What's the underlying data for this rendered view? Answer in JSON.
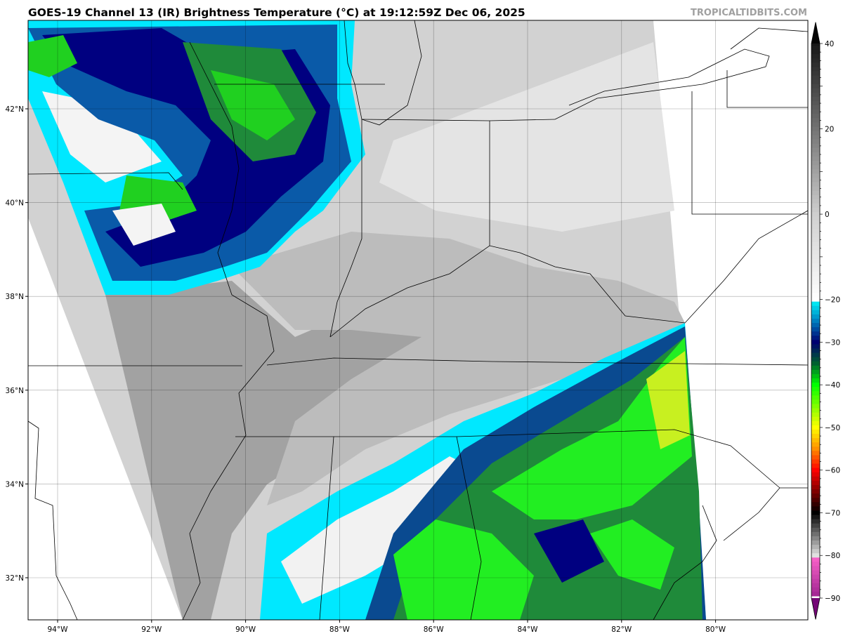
{
  "title": "GOES-19 Channel 13 (IR) Brightness Temperature (°C) at 19:12:59Z Dec 06, 2025",
  "watermark": "TROPICALTIDBITS.COM",
  "map": {
    "type": "satellite-ir",
    "lon_range": [
      -94.6,
      -78.0
    ],
    "lat_range": [
      31.1,
      43.8
    ],
    "grid": true,
    "lon_ticks": [
      "94°W",
      "92°W",
      "90°W",
      "88°W",
      "86°W",
      "84°W",
      "82°W",
      "80°W"
    ],
    "lat_ticks": [
      "42°N",
      "40°N",
      "38°N",
      "36°N",
      "34°N",
      "32°N"
    ]
  },
  "colorbar": {
    "orientation": "vertical",
    "placement": "right",
    "range": [
      -95,
      45
    ],
    "ticks": [
      "40",
      "20",
      "0",
      "−20",
      "−30",
      "−40",
      "−50",
      "−60",
      "−70",
      "−80",
      "−90"
    ],
    "stops": [
      {
        "t": 45,
        "c": "#000000"
      },
      {
        "t": 0,
        "c": "#cfcfcf"
      },
      {
        "t": -20,
        "c": "#ffffff"
      },
      {
        "t": -20,
        "c": "#00ffff"
      },
      {
        "t": -25,
        "c": "#0080c0"
      },
      {
        "t": -30,
        "c": "#000070"
      },
      {
        "t": -35,
        "c": "#006030"
      },
      {
        "t": -40,
        "c": "#00ff00"
      },
      {
        "t": -50,
        "c": "#ffff00"
      },
      {
        "t": -55,
        "c": "#ff9000"
      },
      {
        "t": -60,
        "c": "#ff0000"
      },
      {
        "t": -70,
        "c": "#000000"
      },
      {
        "t": -80,
        "c": "#e0e0e0"
      },
      {
        "t": -80,
        "c": "#ff66cc"
      },
      {
        "t": -95,
        "c": "#6a0070"
      }
    ]
  }
}
